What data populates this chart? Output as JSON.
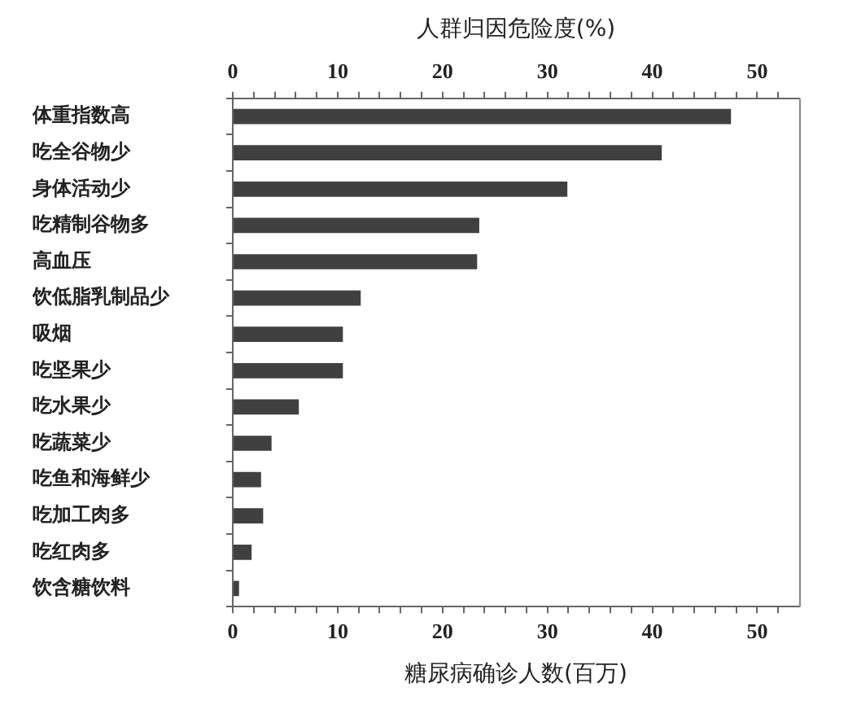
{
  "chart_data": {
    "type": "bar",
    "orientation": "horizontal",
    "x2label": "人群归因危险度(%)",
    "xlabel": "糖尿病确诊人数(百万)",
    "categories": [
      "体重指数高",
      "吃全谷物少",
      "身体活动少",
      "吃精制谷物多",
      "高血压",
      "饮低脂乳制品少",
      "吸烟",
      "吃坚果少",
      "吃水果少",
      "吃蔬菜少",
      "吃鱼和海鲜少",
      "吃加工肉多",
      "吃红肉多",
      "饮含糖饮料"
    ],
    "values": [
      47.5,
      40.9,
      31.9,
      23.5,
      23.3,
      12.2,
      10.5,
      10.5,
      6.3,
      3.7,
      2.7,
      2.9,
      1.8,
      0.6
    ],
    "color": "#404040",
    "xlim": [
      0,
      54
    ],
    "xticks": [
      0,
      {
        "value": 2,
        "label": null
      },
      {
        "value": 4,
        "label": null
      },
      {
        "value": 6,
        "label": null
      },
      {
        "value": 8,
        "label": null
      },
      10,
      {
        "value": 12,
        "label": null
      },
      {
        "value": 14,
        "label": null
      },
      {
        "value": 16,
        "label": null
      },
      {
        "value": 18,
        "label": null
      },
      20,
      {
        "value": 22,
        "label": null
      },
      {
        "value": 24,
        "label": null
      },
      {
        "value": 26,
        "label": null
      },
      {
        "value": 28,
        "label": null
      },
      30,
      {
        "value": 32,
        "label": null
      },
      {
        "value": 34,
        "label": null
      },
      {
        "value": 36,
        "label": null
      },
      {
        "value": 38,
        "label": null
      },
      40,
      {
        "value": 42,
        "label": null
      },
      {
        "value": 44,
        "label": null
      },
      {
        "value": 46,
        "label": null
      },
      {
        "value": 48,
        "label": null
      },
      50,
      {
        "value": 52,
        "label": null
      }
    ],
    "x2lim": [
      0,
      54
    ],
    "x2ticks": [
      0,
      {
        "value": 2,
        "label": null
      },
      {
        "value": 4,
        "label": null
      },
      {
        "value": 6,
        "label": null
      },
      {
        "value": 8,
        "label": null
      },
      10,
      {
        "value": 12,
        "label": null
      },
      {
        "value": 14,
        "label": null
      },
      {
        "value": 16,
        "label": null
      },
      {
        "value": 18,
        "label": null
      },
      20,
      {
        "value": 22,
        "label": null
      },
      {
        "value": 24,
        "label": null
      },
      {
        "value": 26,
        "label": null
      },
      {
        "value": 28,
        "label": null
      },
      30,
      {
        "value": 32,
        "label": null
      },
      {
        "value": 34,
        "label": null
      },
      {
        "value": 36,
        "label": null
      },
      {
        "value": 38,
        "label": null
      },
      40,
      {
        "value": 42,
        "label": null
      },
      {
        "value": 44,
        "label": null
      },
      {
        "value": 46,
        "label": null
      },
      {
        "value": 48,
        "label": null
      },
      50,
      {
        "value": 52,
        "label": null
      }
    ],
    "grid": false,
    "legend": false
  }
}
